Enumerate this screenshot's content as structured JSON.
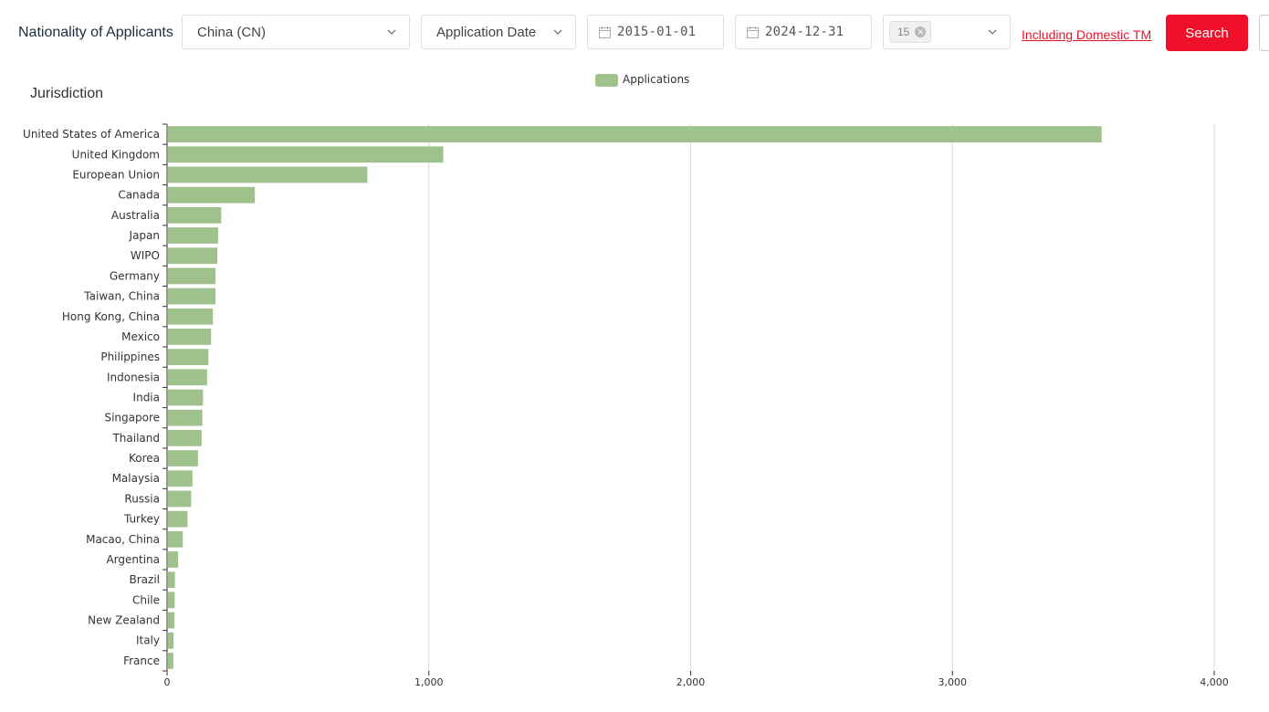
{
  "toolbar": {
    "nationality_label": "Nationality of Applicants",
    "nationality_value": "China (CN)",
    "date_type_value": "Application Date",
    "start_date": "2015-01-01",
    "end_date": "2024-12-31",
    "tag_value": "15",
    "domestic_link": "Including Domestic TM",
    "search_label": "Search"
  },
  "colors": {
    "bar": "#9fc18b",
    "search_button": "#f0102b",
    "link": "#e4152b"
  },
  "chart_data": {
    "type": "bar",
    "orientation": "horizontal",
    "ylabel": "Jurisdiction",
    "series": [
      {
        "name": "Applications",
        "values": [
          3570,
          1055,
          765,
          335,
          207,
          195,
          192,
          185,
          185,
          175,
          168,
          158,
          153,
          137,
          135,
          132,
          118,
          97,
          92,
          78,
          60,
          42,
          30,
          29,
          28,
          25,
          24
        ]
      }
    ],
    "categories": [
      "United States of America",
      "United Kingdom",
      "European Union",
      "Canada",
      "Australia",
      "Japan",
      "WIPO",
      "Germany",
      "Taiwan, China",
      "Hong Kong, China",
      "Mexico",
      "Philippines",
      "Indonesia",
      "India",
      "Singapore",
      "Thailand",
      "Korea",
      "Malaysia",
      "Russia",
      "Turkey",
      "Macao, China",
      "Argentina",
      "Brazil",
      "Chile",
      "New Zealand",
      "Italy",
      "France"
    ],
    "xlim": [
      0,
      4000
    ],
    "xticks": [
      "0",
      "1,000",
      "2,000",
      "3,000",
      "4,000"
    ],
    "xtick_values": [
      0,
      1000,
      2000,
      3000,
      4000
    ],
    "grid": true,
    "legend_position": "top-center"
  }
}
